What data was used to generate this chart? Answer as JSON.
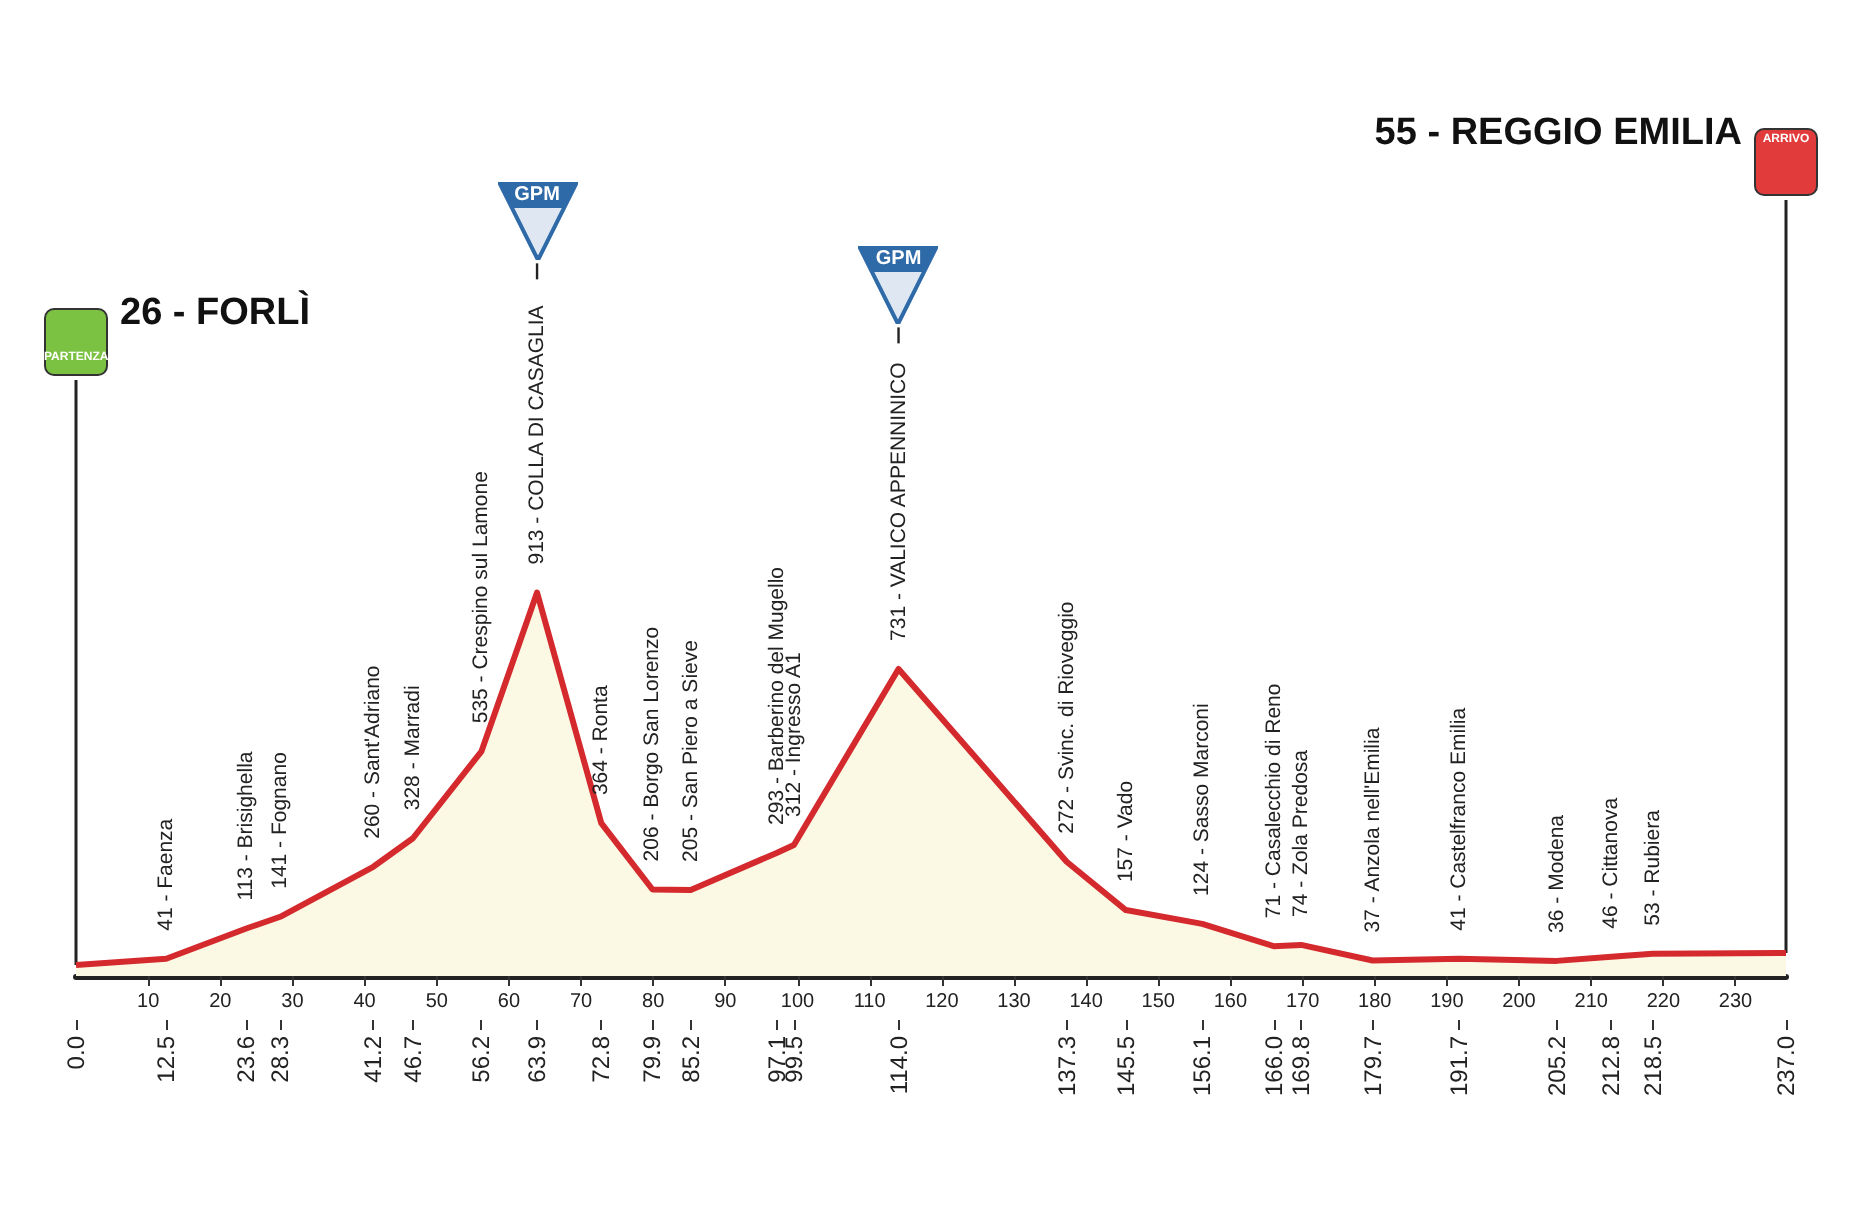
{
  "chart_data": {
    "type": "area",
    "x": [
      0,
      12.5,
      23.6,
      28.3,
      41.2,
      46.7,
      56.2,
      63.9,
      72.8,
      79.9,
      85.2,
      97.1,
      99.5,
      114,
      137.3,
      145.5,
      156.1,
      166,
      169.8,
      179.7,
      191.7,
      205.2,
      212.8,
      218.5,
      237
    ],
    "values": [
      26,
      41,
      113,
      141,
      260,
      328,
      535,
      913,
      364,
      206,
      205,
      293,
      312,
      731,
      272,
      157,
      124,
      71,
      74,
      37,
      41,
      36,
      46,
      53,
      55
    ],
    "value_labels": [
      null,
      "41 - Faenza",
      "113 - Brisighella",
      "141 - Fognano",
      "260 - Sant'Adriano",
      "328 - Marradi",
      "535 - Crespino sul Lamone",
      "913 - COLLA DI CASAGLIA",
      "364 - Ronta",
      "206 - Borgo San Lorenzo",
      "205 - San Piero a Sieve",
      "293 - Barberino del Mugello",
      "312 - Ingresso A1",
      "731 - VALICO APPENNINICO",
      "272 - Svinc. di Rioveggio",
      "157 - Vado",
      "124 - Sasso Marconi",
      "71 - Casalecchio di Reno",
      "74 - Zola Predosa",
      "37 - Anzola nell'Emilia",
      "41 - Castelfranco Emilia",
      "36 - Modena",
      "46 - Cittanova",
      "53 - Rubiera",
      null
    ],
    "color": "#d42a2e",
    "xlim": [
      0,
      237
    ],
    "xticks": [
      10,
      20,
      30,
      40,
      50,
      60,
      70,
      80,
      90,
      100,
      110,
      120,
      130,
      140,
      150,
      160,
      170,
      180,
      190,
      200,
      210,
      220,
      230
    ],
    "x2lim": [
      0,
      237
    ],
    "x2ticks": [
      {
        "value": 0,
        "label": "0.0"
      },
      12.5,
      23.6,
      28.3,
      41.2,
      46.7,
      56.2,
      63.9,
      72.8,
      79.9,
      85.2,
      97.1,
      99.5,
      {
        "value": 114,
        "label": "114.0"
      },
      137.3,
      145.5,
      156.1,
      {
        "value": 166,
        "label": "166.0"
      },
      169.8,
      179.7,
      191.7,
      205.2,
      212.8,
      218.5,
      {
        "value": 237,
        "label": "237.0"
      }
    ],
    "tick_labels": "x",
    "annotations": [
      "26 - FORLÌ",
      "PARTENZA",
      "GPM",
      "GPM",
      "ARRIVO",
      "55 - REGGIO EMILIA"
    ]
  }
}
